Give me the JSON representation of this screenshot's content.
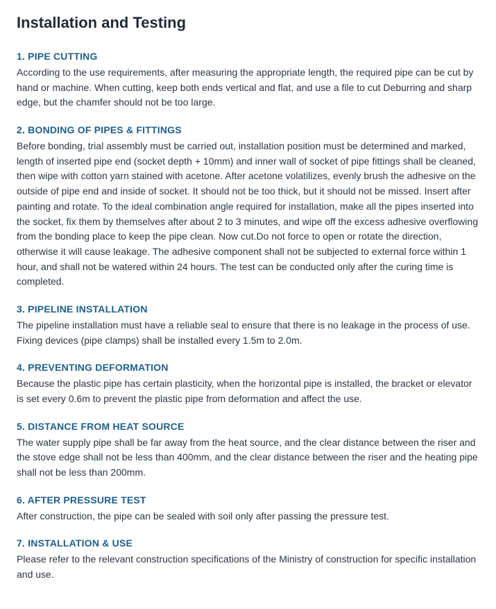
{
  "title": "Installation and Testing",
  "sections": [
    {
      "heading": "1. PIPE CUTTING",
      "body": "According to the use requirements, after measuring the appropriate length, the required pipe can be cut by hand or machine. When cutting, keep both ends vertical and flat, and use a file to cut Deburring and sharp edge, but the chamfer should not be too large."
    },
    {
      "heading": "2. BONDING OF PIPES & FITTINGS",
      "body": "Before bonding, trial assembly must be carried out, installation position must be determined and marked, length of inserted pipe end (socket depth + 10mm) and inner wall of socket of pipe fittings shall be cleaned, then wipe with cotton yarn stained with acetone. After acetone volatilizes, evenly brush the adhesive on the outside of pipe end and inside of socket. It should not be too thick, but it should not be missed. Insert after painting and rotate. To the ideal combination angle required for installation, make all the pipes inserted into the socket, fix them by themselves after about 2 to 3 minutes, and wipe off the excess adhesive overflowing from the bonding place to keep the pipe clean. Now cut.Do not force to open or rotate the direction, otherwise it will cause leakage. The adhesive component shall not be subjected to external force within 1 hour, and shall not be watered within 24 hours. The test can be conducted only after the curing time is completed."
    },
    {
      "heading": "3. PIPELINE INSTALLATION",
      "body": "The pipeline installation must have a reliable seal to ensure that there is no leakage in the process of use. Fixing devices (pipe clamps) shall be installed every 1.5m to 2.0m."
    },
    {
      "heading": "4. PREVENTING DEFORMATION",
      "body": "Because the plastic pipe has certain plasticity, when the horizontal pipe is installed, the bracket or elevator is set every 0.6m to prevent the plastic pipe from deformation and affect the use."
    },
    {
      "heading": "5. DISTANCE FROM HEAT SOURCE",
      "body": "The water supply pipe shall be far away from the heat source, and the clear distance between the riser and the stove edge shall not be less than 400mm, and the clear distance between the riser and the heating pipe shall not be less than 200mm."
    },
    {
      "heading": "6. AFTER PRESSURE TEST",
      "body": "After construction, the pipe can be sealed with soil only after passing the pressure test."
    },
    {
      "heading": "7. INSTALLATION & USE",
      "body": "Please refer to the relevant construction specifications of the Ministry of construction for specific installation and use."
    }
  ],
  "colors": {
    "heading_color": "#1f5f8b",
    "title_color": "#1e2a38",
    "body_color": "#2c3540",
    "background": "#ffffff"
  },
  "typography": {
    "title_fontsize": 22,
    "heading_fontsize": 14,
    "body_fontsize": 14
  }
}
